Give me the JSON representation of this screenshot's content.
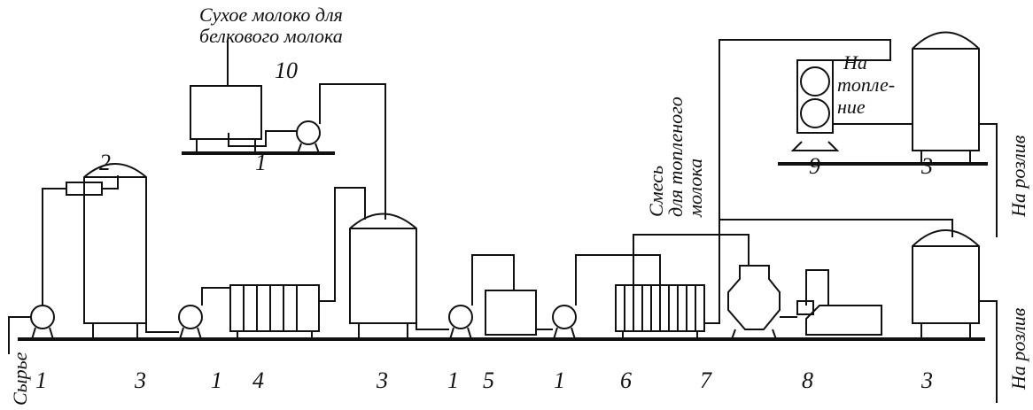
{
  "annotations": {
    "dry_milk": [
      "Сухое молоко для",
      "белкового молока"
    ],
    "melting": [
      "На",
      "топле-",
      "ние"
    ],
    "mix": [
      "Смесь",
      "для топленого",
      "молока"
    ],
    "bottling_top": "На розлив",
    "bottling_bottom": "На розлив",
    "raw": "Сырье"
  },
  "equipment_labels": [
    "1",
    "3",
    "1",
    "4",
    "3",
    "1",
    "5",
    "1",
    "6",
    "7",
    "8",
    "3",
    "2",
    "10",
    "1",
    "9",
    "3"
  ]
}
